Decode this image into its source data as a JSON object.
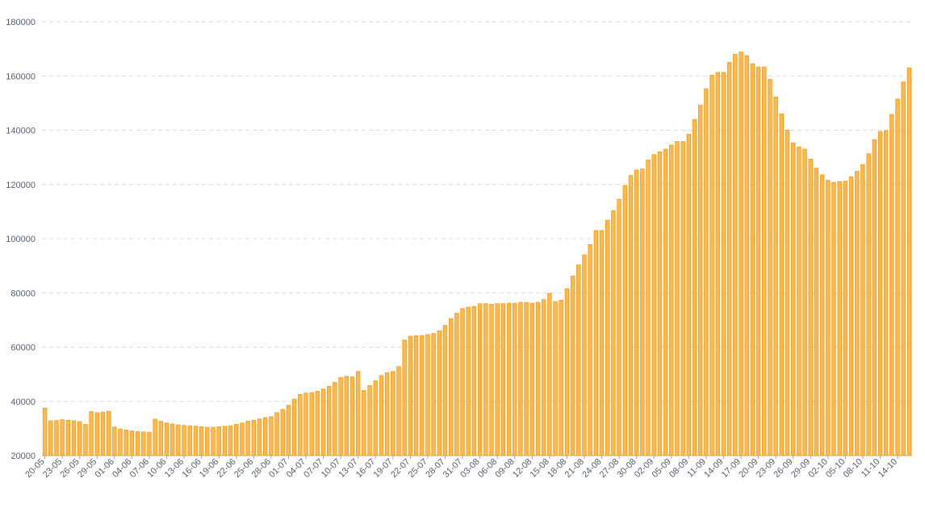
{
  "colors": {
    "bar_fill": "#ffb84d",
    "bar_stroke": "#f29a11",
    "grid": "#d9d9d9",
    "text": "#555e6b"
  },
  "chart_data": {
    "type": "bar",
    "title": "",
    "xlabel": "",
    "ylabel": "",
    "ylim": [
      20000,
      180000
    ],
    "yticks": [
      20000,
      40000,
      60000,
      80000,
      100000,
      120000,
      140000,
      160000,
      180000
    ],
    "grid": true,
    "legend": "none",
    "x_tick_labels": [
      "20-05",
      "23-05",
      "26-05",
      "29-05",
      "01-06",
      "04-06",
      "07-06",
      "10-06",
      "13-06",
      "16-06",
      "19-06",
      "22-06",
      "25-06",
      "28-06",
      "01-07",
      "04-07",
      "07-07",
      "10-07",
      "13-07",
      "16-07",
      "19-07",
      "22-07",
      "25-07",
      "28-07",
      "31-07",
      "03-08",
      "06-08",
      "09-08",
      "12-08",
      "15-08",
      "18-08",
      "21-08",
      "24-08",
      "27-08",
      "30-08",
      "02-09",
      "05-09",
      "08-09",
      "11-09",
      "14-09",
      "17-09",
      "20-09",
      "23-09",
      "26-09",
      "29-09",
      "02-10",
      "05-10",
      "08-10",
      "11-10",
      "14-10"
    ],
    "categories": [
      "20-05",
      "21-05",
      "22-05",
      "23-05",
      "24-05",
      "25-05",
      "26-05",
      "27-05",
      "28-05",
      "29-05",
      "30-05",
      "31-05",
      "01-06",
      "02-06",
      "03-06",
      "04-06",
      "05-06",
      "06-06",
      "07-06",
      "08-06",
      "09-06",
      "10-06",
      "11-06",
      "12-06",
      "13-06",
      "14-06",
      "15-06",
      "16-06",
      "17-06",
      "18-06",
      "19-06",
      "20-06",
      "21-06",
      "22-06",
      "23-06",
      "24-06",
      "25-06",
      "26-06",
      "27-06",
      "28-06",
      "29-06",
      "30-06",
      "01-07",
      "02-07",
      "03-07",
      "04-07",
      "05-07",
      "06-07",
      "07-07",
      "08-07",
      "09-07",
      "10-07",
      "11-07",
      "12-07",
      "13-07",
      "14-07",
      "15-07",
      "16-07",
      "17-07",
      "18-07",
      "19-07",
      "20-07",
      "21-07",
      "22-07",
      "23-07",
      "24-07",
      "25-07",
      "26-07",
      "27-07",
      "28-07",
      "29-07",
      "30-07",
      "31-07",
      "01-08",
      "02-08",
      "03-08",
      "04-08",
      "05-08",
      "06-08",
      "07-08",
      "08-08",
      "09-08",
      "10-08",
      "11-08",
      "12-08",
      "13-08",
      "14-08",
      "15-08",
      "16-08",
      "17-08",
      "18-08",
      "19-08",
      "20-08",
      "21-08",
      "22-08",
      "23-08",
      "24-08",
      "25-08",
      "26-08",
      "27-08",
      "28-08",
      "29-08",
      "30-08",
      "31-08",
      "01-09",
      "02-09",
      "03-09",
      "04-09",
      "05-09",
      "06-09",
      "07-09",
      "08-09",
      "09-09",
      "10-09",
      "11-09",
      "12-09",
      "13-09",
      "14-09",
      "15-09",
      "16-09",
      "17-09",
      "18-09",
      "19-09",
      "20-09",
      "21-09",
      "22-09",
      "23-09",
      "24-09",
      "25-09",
      "26-09",
      "27-09",
      "28-09",
      "29-09",
      "30-09",
      "01-10",
      "02-10",
      "03-10",
      "04-10",
      "05-10",
      "06-10",
      "07-10",
      "08-10",
      "09-10",
      "10-10",
      "11-10",
      "12-10",
      "13-10",
      "14-10",
      "15-10",
      "16-10"
    ],
    "values": [
      37500,
      32800,
      32900,
      33200,
      33000,
      32800,
      32500,
      31500,
      36200,
      35800,
      36000,
      36300,
      30500,
      29800,
      29400,
      29100,
      28800,
      28700,
      28600,
      33400,
      32600,
      32000,
      31600,
      31300,
      31100,
      31000,
      30800,
      30600,
      30400,
      30400,
      30600,
      30800,
      31000,
      31500,
      32000,
      32600,
      33000,
      33500,
      34000,
      34300,
      35800,
      37000,
      38500,
      40800,
      42500,
      43000,
      43200,
      43700,
      44500,
      45500,
      47000,
      48800,
      49200,
      49000,
      51000,
      44000,
      45800,
      47600,
      49500,
      50500,
      51000,
      52800,
      62600,
      64000,
      64200,
      64300,
      64600,
      65000,
      66000,
      68000,
      70500,
      72500,
      74200,
      74700,
      75000,
      76000,
      76000,
      75800,
      76000,
      76000,
      76200,
      76200,
      76500,
      76400,
      76200,
      76500,
      77500,
      79800,
      76800,
      77300,
      81500,
      86200,
      90300,
      94000,
      97800,
      103000,
      103000,
      106800,
      110300,
      114500,
      119500,
      123300,
      125300,
      125700,
      129000,
      131000,
      132000,
      133000,
      134500,
      135800,
      135800,
      138500,
      144000,
      149200,
      155300,
      160300,
      161300,
      161300,
      165000,
      168000,
      168800,
      167500,
      164500,
      163300,
      163300,
      158700,
      152300,
      146000,
      140000,
      135300,
      133800,
      133000,
      129300,
      126000,
      123500,
      121500,
      120700,
      121000,
      121200,
      122800,
      124800,
      127300,
      131300,
      136500,
      139500,
      139800,
      145800,
      151500,
      157800,
      163000
    ]
  }
}
